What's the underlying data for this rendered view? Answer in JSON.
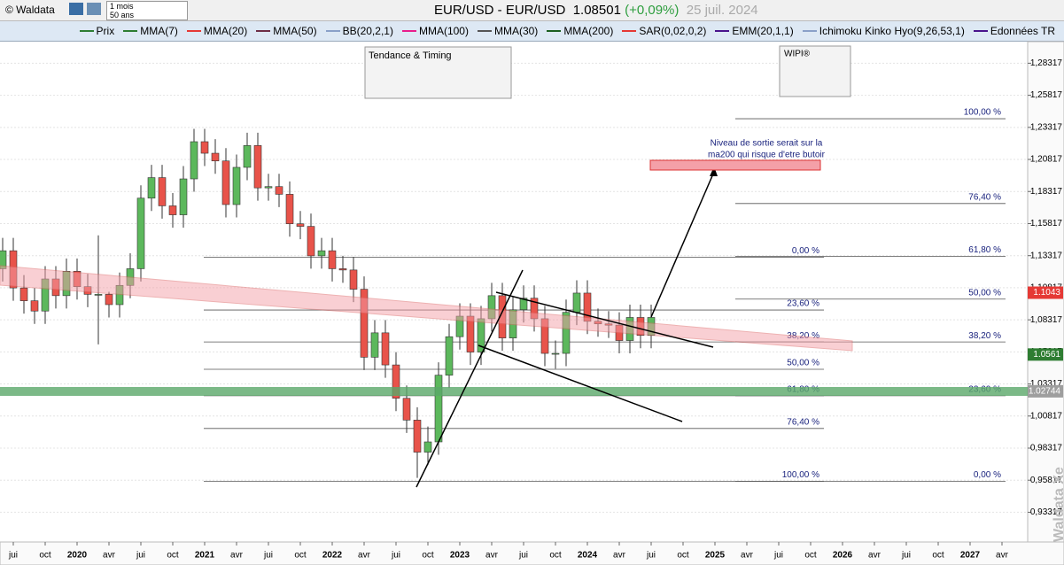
{
  "toolbar": {
    "brand": "© Waldata",
    "period": "1 mois",
    "span": "50 ans",
    "instrument": "EUR/USD - EUR/USD",
    "price": "1.08501",
    "change": "(+0,09%)",
    "date": "25 juil. 2024"
  },
  "legend": [
    {
      "name": "Prix",
      "color": "#2e7d32"
    },
    {
      "name": "MMA(7)",
      "color": "#2e7d32"
    },
    {
      "name": "MMA(20)",
      "color": "#e53935"
    },
    {
      "name": "MMA(50)",
      "color": "#6d2e46"
    },
    {
      "name": "BB(20,2,1)",
      "color": "#8aa0c8"
    },
    {
      "name": "MMA(100)",
      "color": "#e91e8c"
    },
    {
      "name": "MMA(30)",
      "color": "#555555"
    },
    {
      "name": "MMA(200)",
      "color": "#1b5e20"
    },
    {
      "name": "SAR(0,02,0,2)",
      "color": "#e53935"
    },
    {
      "name": "EMM(20,1,1)",
      "color": "#4a148c"
    },
    {
      "name": "Ichimoku Kinko Hyo(9,26,53,1)",
      "color": "#8aa0c8"
    },
    {
      "name": "Edonnées TR",
      "color": "#4a148c"
    }
  ],
  "panels": {
    "trend": "Tendance & Timing",
    "wipi": "WIPI®"
  },
  "annotation": [
    "Niveau de sortie serait sur la",
    "ma200 qui risque d'etre butoir"
  ],
  "watermark": "Waldata Xe",
  "chart_data": {
    "type": "candlestick",
    "up_color": "#5cb85c",
    "down_color": "#e8534a",
    "x": [
      "2019-06",
      "2019-07",
      "2019-08",
      "2019-09",
      "2019-10",
      "2019-11",
      "2019-12",
      "2020-01",
      "2020-02",
      "2020-03",
      "2020-04",
      "2020-05",
      "2020-06",
      "2020-07",
      "2020-08",
      "2020-09",
      "2020-10",
      "2020-11",
      "2020-12",
      "2021-01",
      "2021-02",
      "2021-03",
      "2021-04",
      "2021-05",
      "2021-06",
      "2021-07",
      "2021-08",
      "2021-09",
      "2021-10",
      "2021-11",
      "2021-12",
      "2022-01",
      "2022-02",
      "2022-03",
      "2022-04",
      "2022-05",
      "2022-06",
      "2022-07",
      "2022-08",
      "2022-09",
      "2022-10",
      "2022-11",
      "2022-12",
      "2023-01",
      "2023-02",
      "2023-03",
      "2023-04",
      "2023-05",
      "2023-06",
      "2023-07",
      "2023-08",
      "2023-09",
      "2023-10",
      "2023-11",
      "2023-12",
      "2024-01",
      "2024-02",
      "2024-03",
      "2024-04",
      "2024-05",
      "2024-06",
      "2024-07"
    ],
    "open": [
      1.123,
      1.137,
      1.108,
      1.098,
      1.09,
      1.115,
      1.102,
      1.121,
      1.109,
      1.103,
      1.103,
      1.095,
      1.11,
      1.123,
      1.178,
      1.194,
      1.172,
      1.165,
      1.193,
      1.222,
      1.213,
      1.207,
      1.173,
      1.202,
      1.219,
      1.186,
      1.187,
      1.181,
      1.158,
      1.156,
      1.133,
      1.137,
      1.123,
      1.122,
      1.107,
      1.054,
      1.073,
      1.048,
      1.022,
      1.005,
      0.98,
      0.988,
      1.04,
      1.07,
      1.086,
      1.058,
      1.084,
      1.102,
      1.069,
      1.091,
      1.1,
      1.084,
      1.057,
      1.057,
      1.089,
      1.104,
      1.082,
      1.08,
      1.079,
      1.067,
      1.085,
      1.071
    ],
    "high": [
      1.147,
      1.147,
      1.118,
      1.108,
      1.125,
      1.125,
      1.131,
      1.131,
      1.119,
      1.149,
      1.105,
      1.12,
      1.135,
      1.188,
      1.204,
      1.204,
      1.182,
      1.203,
      1.232,
      1.232,
      1.224,
      1.217,
      1.212,
      1.229,
      1.229,
      1.197,
      1.197,
      1.191,
      1.168,
      1.166,
      1.147,
      1.147,
      1.133,
      1.132,
      1.117,
      1.083,
      1.083,
      1.058,
      1.032,
      1.015,
      1.0,
      1.05,
      1.08,
      1.096,
      1.096,
      1.094,
      1.112,
      1.112,
      1.101,
      1.11,
      1.11,
      1.094,
      1.067,
      1.099,
      1.114,
      1.114,
      1.092,
      1.09,
      1.089,
      1.095,
      1.095,
      1.095
    ],
    "low": [
      1.113,
      1.098,
      1.088,
      1.08,
      1.08,
      1.092,
      1.092,
      1.099,
      1.093,
      1.064,
      1.085,
      1.085,
      1.1,
      1.113,
      1.168,
      1.162,
      1.155,
      1.155,
      1.183,
      1.203,
      1.197,
      1.163,
      1.163,
      1.192,
      1.176,
      1.176,
      1.171,
      1.148,
      1.146,
      1.123,
      1.123,
      1.113,
      1.112,
      1.097,
      1.044,
      1.044,
      1.038,
      1.012,
      0.995,
      0.96,
      0.97,
      0.978,
      1.03,
      1.06,
      1.048,
      1.048,
      1.074,
      1.059,
      1.059,
      1.081,
      1.074,
      1.047,
      1.045,
      1.047,
      1.079,
      1.072,
      1.07,
      1.069,
      1.057,
      1.057,
      1.061,
      1.061
    ],
    "close": [
      1.137,
      1.108,
      1.098,
      1.09,
      1.115,
      1.102,
      1.121,
      1.109,
      1.103,
      1.103,
      1.095,
      1.11,
      1.123,
      1.178,
      1.194,
      1.172,
      1.165,
      1.193,
      1.222,
      1.213,
      1.207,
      1.173,
      1.202,
      1.219,
      1.186,
      1.187,
      1.181,
      1.158,
      1.156,
      1.133,
      1.137,
      1.123,
      1.122,
      1.107,
      1.054,
      1.073,
      1.048,
      1.022,
      1.005,
      0.98,
      0.988,
      1.04,
      1.07,
      1.086,
      1.058,
      1.084,
      1.102,
      1.069,
      1.091,
      1.1,
      1.084,
      1.057,
      1.057,
      1.089,
      1.104,
      1.082,
      1.08,
      1.079,
      1.067,
      1.085,
      1.071,
      1.085
    ],
    "ylim": [
      0.91,
      1.3
    ],
    "yticks": [
      {
        "value": 1.28317,
        "label": "1,28317"
      },
      {
        "value": 1.25817,
        "label": "1,25817"
      },
      {
        "value": 1.23317,
        "label": "1,23317"
      },
      {
        "value": 1.20817,
        "label": "1,20817"
      },
      {
        "value": 1.18317,
        "label": "1,18317"
      },
      {
        "value": 1.15817,
        "label": "1,15817"
      },
      {
        "value": 1.13317,
        "label": "1,13317"
      },
      {
        "value": 1.10817,
        "label": "1,10817"
      },
      {
        "value": 1.08317,
        "label": "1,08317"
      },
      {
        "value": 1.05817,
        "label": "1,05817"
      },
      {
        "value": 1.03317,
        "label": "1,03317"
      },
      {
        "value": 1.00817,
        "label": "1,00817"
      },
      {
        "value": 0.98317,
        "label": "0,98317"
      },
      {
        "value": 0.95817,
        "label": "0,95817"
      },
      {
        "value": 0.93317,
        "label": "0,93317"
      }
    ],
    "xticks": [
      {
        "value": "2019-07",
        "label": "jui"
      },
      {
        "value": "2019-10",
        "label": "oct"
      },
      {
        "value": "2020-01",
        "label": "2020"
      },
      {
        "value": "2020-04",
        "label": "avr"
      },
      {
        "value": "2020-07",
        "label": "jui"
      },
      {
        "value": "2020-10",
        "label": "oct"
      },
      {
        "value": "2021-01",
        "label": "2021"
      },
      {
        "value": "2021-04",
        "label": "avr"
      },
      {
        "value": "2021-07",
        "label": "jui"
      },
      {
        "value": "2021-10",
        "label": "oct"
      },
      {
        "value": "2022-01",
        "label": "2022"
      },
      {
        "value": "2022-04",
        "label": "avr"
      },
      {
        "value": "2022-07",
        "label": "jui"
      },
      {
        "value": "2022-10",
        "label": "oct"
      },
      {
        "value": "2023-01",
        "label": "2023"
      },
      {
        "value": "2023-04",
        "label": "avr"
      },
      {
        "value": "2023-07",
        "label": "jui"
      },
      {
        "value": "2023-10",
        "label": "oct"
      },
      {
        "value": "2024-01",
        "label": "2024"
      },
      {
        "value": "2024-04",
        "label": "avr"
      },
      {
        "value": "2024-07",
        "label": "jui"
      },
      {
        "value": "2024-10",
        "label": "oct"
      },
      {
        "value": "2025-01",
        "label": "2025"
      },
      {
        "value": "2025-04",
        "label": "avr"
      },
      {
        "value": "2025-07",
        "label": "jui"
      },
      {
        "value": "2025-10",
        "label": "oct"
      },
      {
        "value": "2026-01",
        "label": "2026"
      },
      {
        "value": "2026-04",
        "label": "avr"
      },
      {
        "value": "2026-07",
        "label": "jui"
      },
      {
        "value": "2026-10",
        "label": "oct"
      },
      {
        "value": "2027-01",
        "label": "2027"
      },
      {
        "value": "2027-04",
        "label": "avr"
      }
    ],
    "fib_left": [
      {
        "label": "0,00 %",
        "value": 1.132
      },
      {
        "label": "23,60 %",
        "value": 1.0908
      },
      {
        "label": "38,20 %",
        "value": 1.0659
      },
      {
        "label": "50,00 %",
        "value": 1.0446
      },
      {
        "label": "61,80 %",
        "value": 1.024
      },
      {
        "label": "76,40 %",
        "value": 0.9985
      },
      {
        "label": "100,00 %",
        "value": 0.9573
      }
    ],
    "fib_right": [
      {
        "label": "100,00 %",
        "value": 1.2399
      },
      {
        "label": "76,40 %",
        "value": 1.1738
      },
      {
        "label": "61,80 %",
        "value": 1.1327
      },
      {
        "label": "50,00 %",
        "value": 1.0993
      },
      {
        "label": "38,20 %",
        "value": 1.0659
      },
      {
        "label": "23,60 %",
        "value": 1.024
      },
      {
        "label": "0,00 %",
        "value": 0.9573
      }
    ],
    "price_tags": [
      {
        "value": 1.1043,
        "color": "#e53935"
      },
      {
        "value": 1.0561,
        "color": "#2e7d32"
      },
      {
        "value": 1.02744,
        "color": "#9e9e9e"
      }
    ]
  }
}
